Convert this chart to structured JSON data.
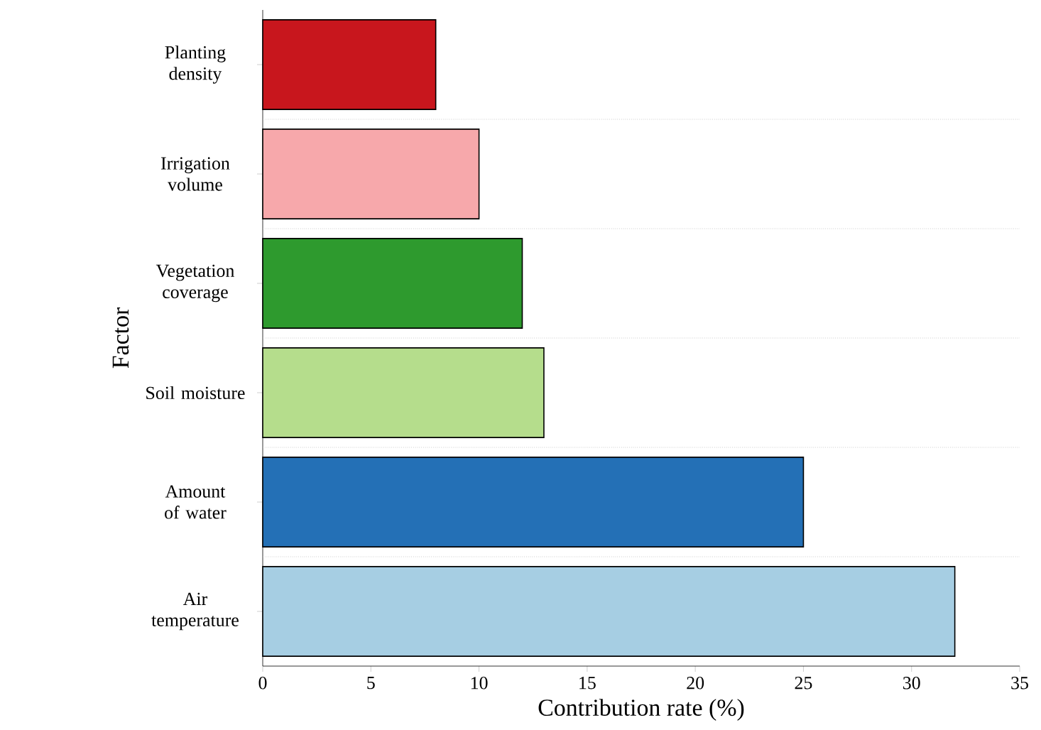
{
  "chart_data": {
    "type": "bar",
    "orientation": "horizontal",
    "xlabel": "Contribution rate (%)",
    "ylabel": "Factor",
    "categories": [
      "Planting density",
      "Irrigation volume",
      "Vegetation coverage",
      "Soil moisture",
      "Amount of water",
      "Air temperature"
    ],
    "values": [
      8,
      10,
      12,
      13,
      25,
      32
    ],
    "colors": [
      "#c8161d",
      "#f7a8ab",
      "#2e9a2e",
      "#b5dd8c",
      "#2470b6",
      "#a6cee3"
    ],
    "xlim": [
      0,
      35
    ],
    "xticks": [
      0,
      5,
      10,
      15,
      20,
      25,
      30,
      35
    ],
    "grid": "y"
  }
}
